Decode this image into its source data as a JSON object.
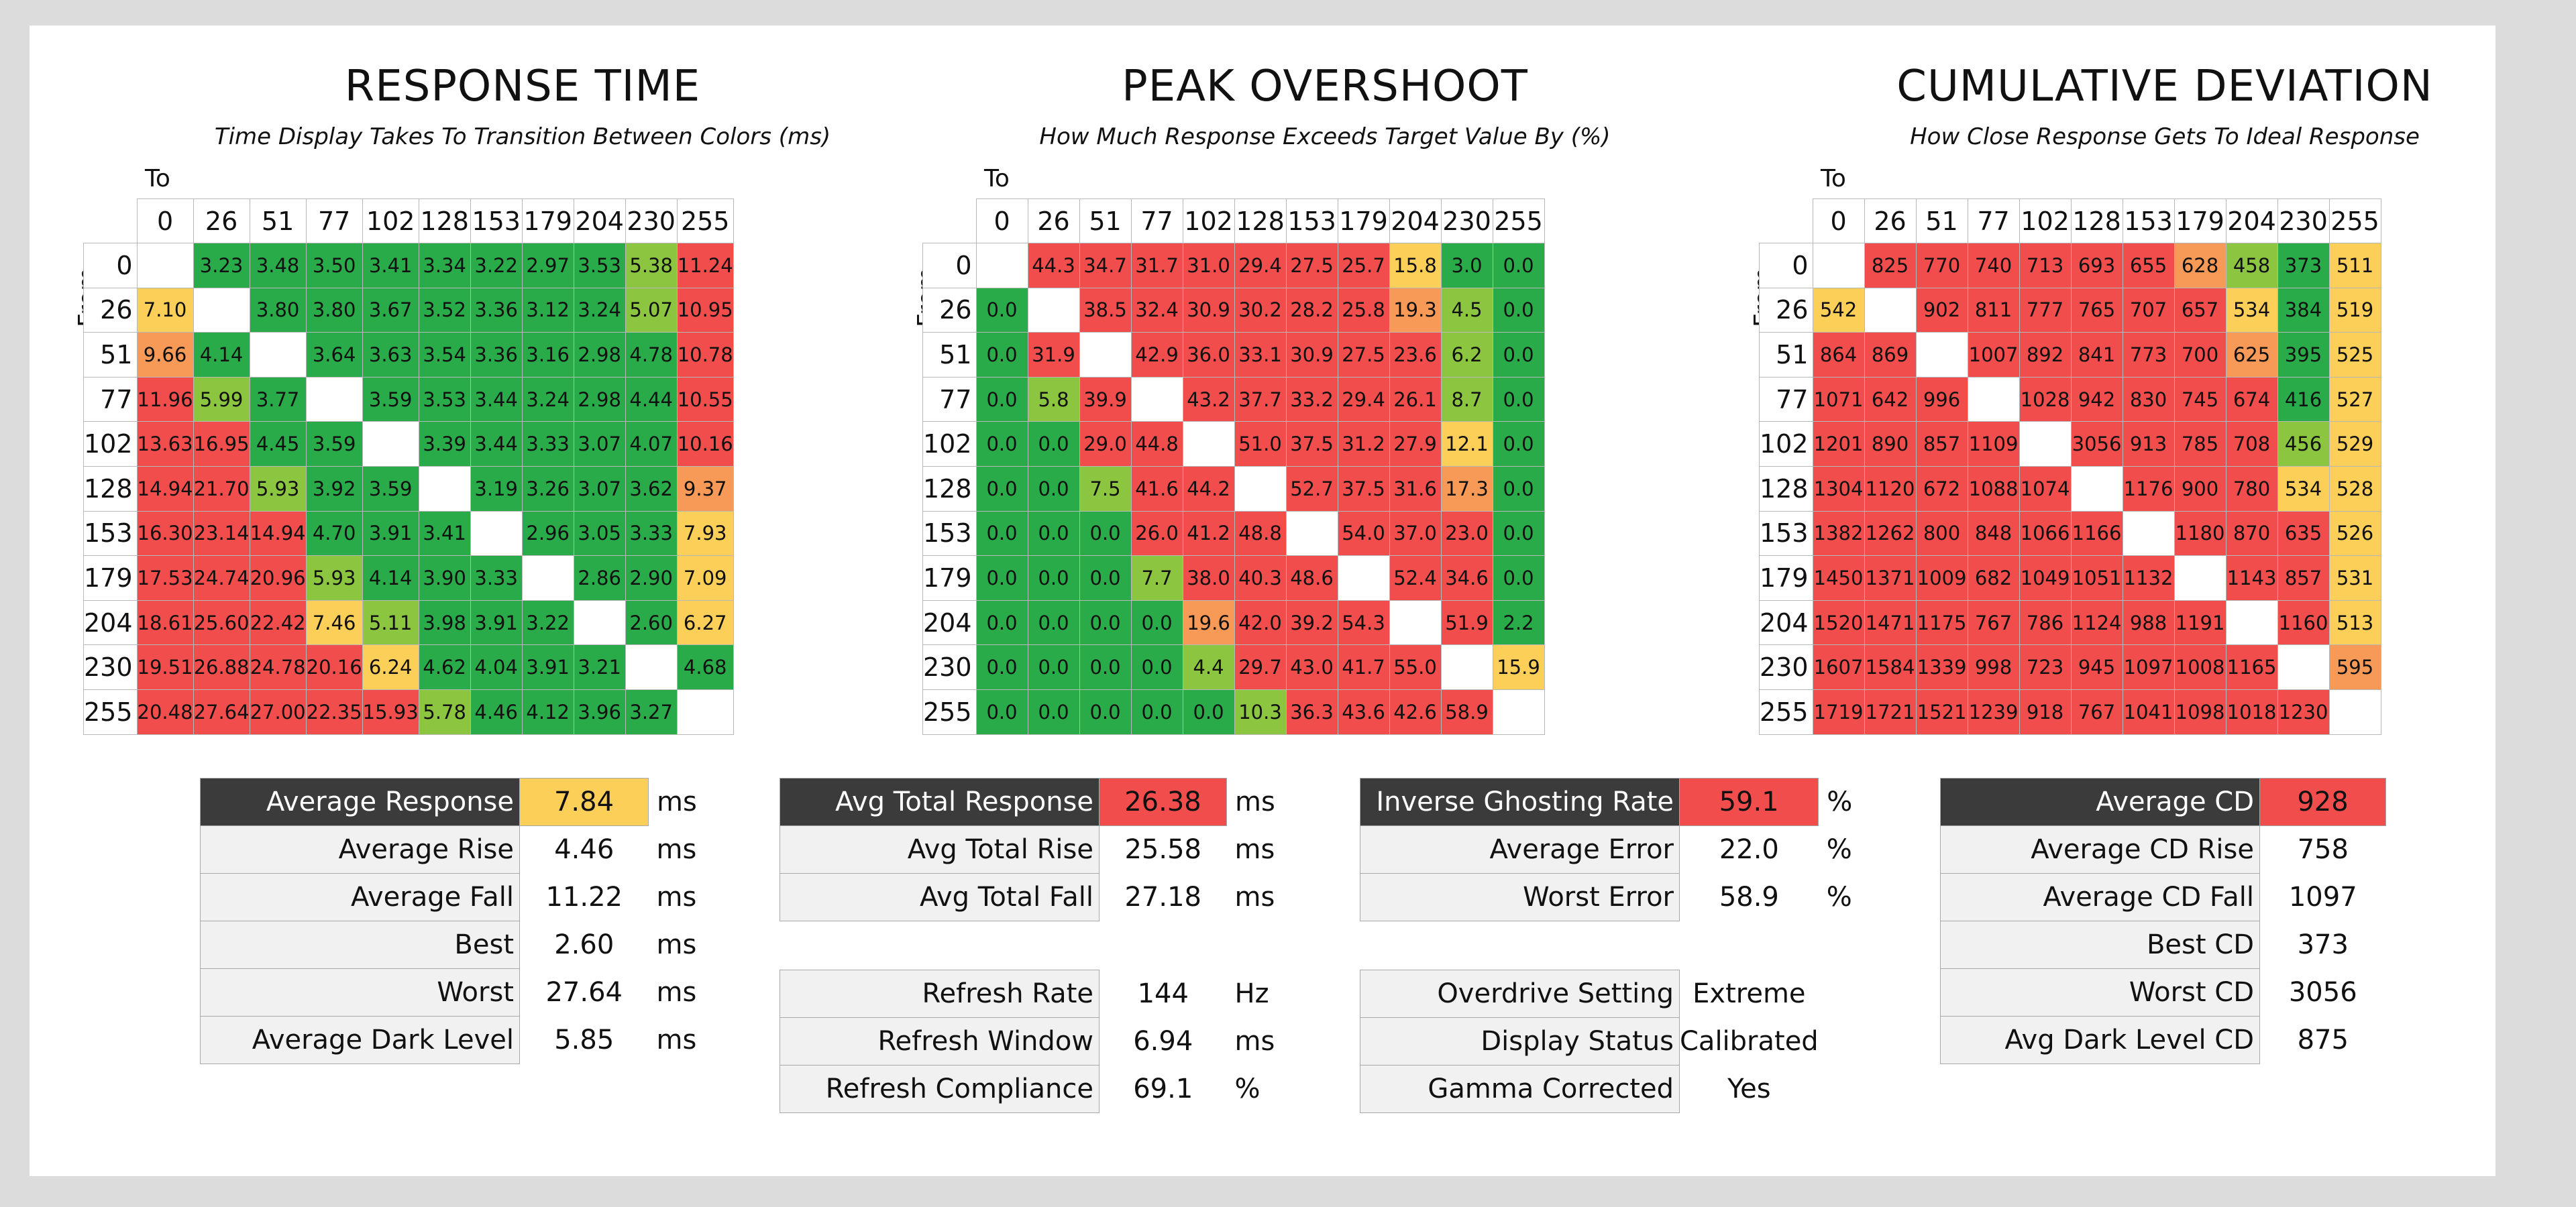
{
  "colors": {
    "green": "#2aab4a",
    "lightgreen": "#8cc540",
    "yellow": "#fccf58",
    "orange": "#f79a57",
    "red": "#f24d4d"
  },
  "chart_data": [
    {
      "type": "heatmap",
      "title": "RESPONSE TIME",
      "subtitle": "Time Display Takes To Transition Between Colors (ms)",
      "to_label": "To",
      "from_label": "From",
      "levels": [
        "0",
        "26",
        "51",
        "77",
        "102",
        "128",
        "153",
        "179",
        "204",
        "230",
        "255"
      ],
      "values": [
        [
          "",
          "3.23",
          "3.48",
          "3.50",
          "3.41",
          "3.34",
          "3.22",
          "2.97",
          "3.53",
          "5.38",
          "11.24"
        ],
        [
          "7.10",
          "",
          "3.80",
          "3.80",
          "3.67",
          "3.52",
          "3.36",
          "3.12",
          "3.24",
          "5.07",
          "10.95"
        ],
        [
          "9.66",
          "4.14",
          "",
          "3.64",
          "3.63",
          "3.54",
          "3.36",
          "3.16",
          "2.98",
          "4.78",
          "10.78"
        ],
        [
          "11.96",
          "5.99",
          "3.77",
          "",
          "3.59",
          "3.53",
          "3.44",
          "3.24",
          "2.98",
          "4.44",
          "10.55"
        ],
        [
          "13.63",
          "16.95",
          "4.45",
          "3.59",
          "",
          "3.39",
          "3.44",
          "3.33",
          "3.07",
          "4.07",
          "10.16"
        ],
        [
          "14.94",
          "21.70",
          "5.93",
          "3.92",
          "3.59",
          "",
          "3.19",
          "3.26",
          "3.07",
          "3.62",
          "9.37"
        ],
        [
          "16.30",
          "23.14",
          "14.94",
          "4.70",
          "3.91",
          "3.41",
          "",
          "2.96",
          "3.05",
          "3.33",
          "7.93"
        ],
        [
          "17.53",
          "24.74",
          "20.96",
          "5.93",
          "4.14",
          "3.90",
          "3.33",
          "",
          "2.86",
          "2.90",
          "7.09"
        ],
        [
          "18.61",
          "25.60",
          "22.42",
          "7.46",
          "5.11",
          "3.98",
          "3.91",
          "3.22",
          "",
          "2.60",
          "6.27"
        ],
        [
          "19.51",
          "26.88",
          "24.78",
          "20.16",
          "6.24",
          "4.62",
          "4.04",
          "3.91",
          "3.21",
          "",
          "4.68"
        ],
        [
          "20.48",
          "27.64",
          "27.00",
          "22.35",
          "15.93",
          "5.78",
          "4.46",
          "4.12",
          "3.96",
          "3.27",
          ""
        ]
      ],
      "color_thresholds": [
        5.0,
        6.0,
        8.0,
        10.0
      ]
    },
    {
      "type": "heatmap",
      "title": "PEAK OVERSHOOT",
      "subtitle": "How Much Response Exceeds Target Value By (%)",
      "to_label": "To",
      "from_label": "From",
      "levels": [
        "0",
        "26",
        "51",
        "77",
        "102",
        "128",
        "153",
        "179",
        "204",
        "230",
        "255"
      ],
      "values": [
        [
          "",
          "44.3",
          "34.7",
          "31.7",
          "31.0",
          "29.4",
          "27.5",
          "25.7",
          "15.8",
          "3.0",
          "0.0"
        ],
        [
          "0.0",
          "",
          "38.5",
          "32.4",
          "30.9",
          "30.2",
          "28.2",
          "25.8",
          "19.3",
          "4.5",
          "0.0"
        ],
        [
          "0.0",
          "31.9",
          "",
          "42.9",
          "36.0",
          "33.1",
          "30.9",
          "27.5",
          "23.6",
          "6.2",
          "0.0"
        ],
        [
          "0.0",
          "5.8",
          "39.9",
          "",
          "43.2",
          "37.7",
          "33.2",
          "29.4",
          "26.1",
          "8.7",
          "0.0"
        ],
        [
          "0.0",
          "0.0",
          "29.0",
          "44.8",
          "",
          "51.0",
          "37.5",
          "31.2",
          "27.9",
          "12.1",
          "0.0"
        ],
        [
          "0.0",
          "0.0",
          "7.5",
          "41.6",
          "44.2",
          "",
          "52.7",
          "37.5",
          "31.6",
          "17.3",
          "0.0"
        ],
        [
          "0.0",
          "0.0",
          "0.0",
          "26.0",
          "41.2",
          "48.8",
          "",
          "54.0",
          "37.0",
          "23.0",
          "0.0"
        ],
        [
          "0.0",
          "0.0",
          "0.0",
          "7.7",
          "38.0",
          "40.3",
          "48.6",
          "",
          "52.4",
          "34.6",
          "0.0"
        ],
        [
          "0.0",
          "0.0",
          "0.0",
          "0.0",
          "19.6",
          "42.0",
          "39.2",
          "54.3",
          "",
          "51.9",
          "2.2"
        ],
        [
          "0.0",
          "0.0",
          "0.0",
          "0.0",
          "4.4",
          "29.7",
          "43.0",
          "41.7",
          "55.0",
          "",
          "15.9"
        ],
        [
          "0.0",
          "0.0",
          "0.0",
          "0.0",
          "0.0",
          "10.3",
          "36.3",
          "43.6",
          "42.6",
          "58.9",
          ""
        ]
      ],
      "color_thresholds": [
        3.0,
        12.0,
        17.0,
        20.0
      ]
    },
    {
      "type": "heatmap",
      "title": "CUMULATIVE DEVIATION",
      "subtitle": "How Close Response Gets To Ideal Response",
      "to_label": "To",
      "from_label": "From",
      "levels": [
        "0",
        "26",
        "51",
        "77",
        "102",
        "128",
        "153",
        "179",
        "204",
        "230",
        "255"
      ],
      "values": [
        [
          "",
          "825",
          "770",
          "740",
          "713",
          "693",
          "655",
          "628",
          "458",
          "373",
          "511"
        ],
        [
          "542",
          "",
          "902",
          "811",
          "777",
          "765",
          "707",
          "657",
          "534",
          "384",
          "519"
        ],
        [
          "864",
          "869",
          "",
          "1007",
          "892",
          "841",
          "773",
          "700",
          "625",
          "395",
          "525"
        ],
        [
          "1071",
          "642",
          "996",
          "",
          "1028",
          "942",
          "830",
          "745",
          "674",
          "416",
          "527"
        ],
        [
          "1201",
          "890",
          "857",
          "1109",
          "",
          "3056",
          "913",
          "785",
          "708",
          "456",
          "529"
        ],
        [
          "1304",
          "1120",
          "672",
          "1088",
          "1074",
          "",
          "1176",
          "900",
          "780",
          "534",
          "528"
        ],
        [
          "1382",
          "1262",
          "800",
          "848",
          "1066",
          "1166",
          "",
          "1180",
          "870",
          "635",
          "526"
        ],
        [
          "1450",
          "1371",
          "1009",
          "682",
          "1049",
          "1051",
          "1132",
          "",
          "1143",
          "857",
          "531"
        ],
        [
          "1520",
          "1471",
          "1175",
          "767",
          "786",
          "1124",
          "988",
          "1191",
          "",
          "1160",
          "513"
        ],
        [
          "1607",
          "1584",
          "1339",
          "998",
          "723",
          "945",
          "1097",
          "1008",
          "1165",
          "",
          "595"
        ],
        [
          "1719",
          "1721",
          "1521",
          "1239",
          "918",
          "767",
          "1041",
          "1098",
          "1018",
          "1230",
          ""
        ]
      ],
      "color_thresholds": [
        420,
        480,
        560,
        630
      ]
    }
  ],
  "stats": [
    {
      "rows": [
        {
          "label": "Average Response",
          "value": "7.84",
          "unit": "ms",
          "header": true,
          "color": "#fccf58"
        },
        {
          "label": "Average Rise",
          "value": "4.46",
          "unit": "ms"
        },
        {
          "label": "Average Fall",
          "value": "11.22",
          "unit": "ms"
        },
        {
          "label": "Best",
          "value": "2.60",
          "unit": "ms"
        },
        {
          "label": "Worst",
          "value": "27.64",
          "unit": "ms"
        },
        {
          "label": "Average Dark Level",
          "value": "5.85",
          "unit": "ms"
        }
      ]
    },
    {
      "rows": [
        {
          "label": "Avg Total Response",
          "value": "26.38",
          "unit": "ms",
          "header": true,
          "color": "#f24d4d"
        },
        {
          "label": "Avg Total Rise",
          "value": "25.58",
          "unit": "ms"
        },
        {
          "label": "Avg Total Fall",
          "value": "27.18",
          "unit": "ms"
        },
        {
          "gap": true
        },
        {
          "label": "Refresh Rate",
          "value": "144",
          "unit": "Hz"
        },
        {
          "label": "Refresh Window",
          "value": "6.94",
          "unit": "ms"
        },
        {
          "label": "Refresh Compliance",
          "value": "69.1",
          "unit": "%"
        }
      ]
    },
    {
      "rows": [
        {
          "label": "Inverse Ghosting Rate",
          "value": "59.1",
          "unit": "%",
          "header": true,
          "color": "#f24d4d"
        },
        {
          "label": "Average Error",
          "value": "22.0",
          "unit": "%"
        },
        {
          "label": "Worst Error",
          "value": "58.9",
          "unit": "%"
        },
        {
          "gap": true
        },
        {
          "label": "Overdrive Setting",
          "value": "Extreme",
          "unit": ""
        },
        {
          "label": "Display Status",
          "value": "Calibrated",
          "unit": ""
        },
        {
          "label": "Gamma Corrected",
          "value": "Yes",
          "unit": ""
        }
      ]
    },
    {
      "rows": [
        {
          "label": "Average CD",
          "value": "928",
          "unit": "",
          "header": true,
          "color": "#f24d4d"
        },
        {
          "label": "Average CD Rise",
          "value": "758",
          "unit": ""
        },
        {
          "label": "Average CD Fall",
          "value": "1097",
          "unit": ""
        },
        {
          "label": "Best CD",
          "value": "373",
          "unit": ""
        },
        {
          "label": "Worst CD",
          "value": "3056",
          "unit": ""
        },
        {
          "label": "Avg Dark Level CD",
          "value": "875",
          "unit": ""
        }
      ]
    }
  ]
}
